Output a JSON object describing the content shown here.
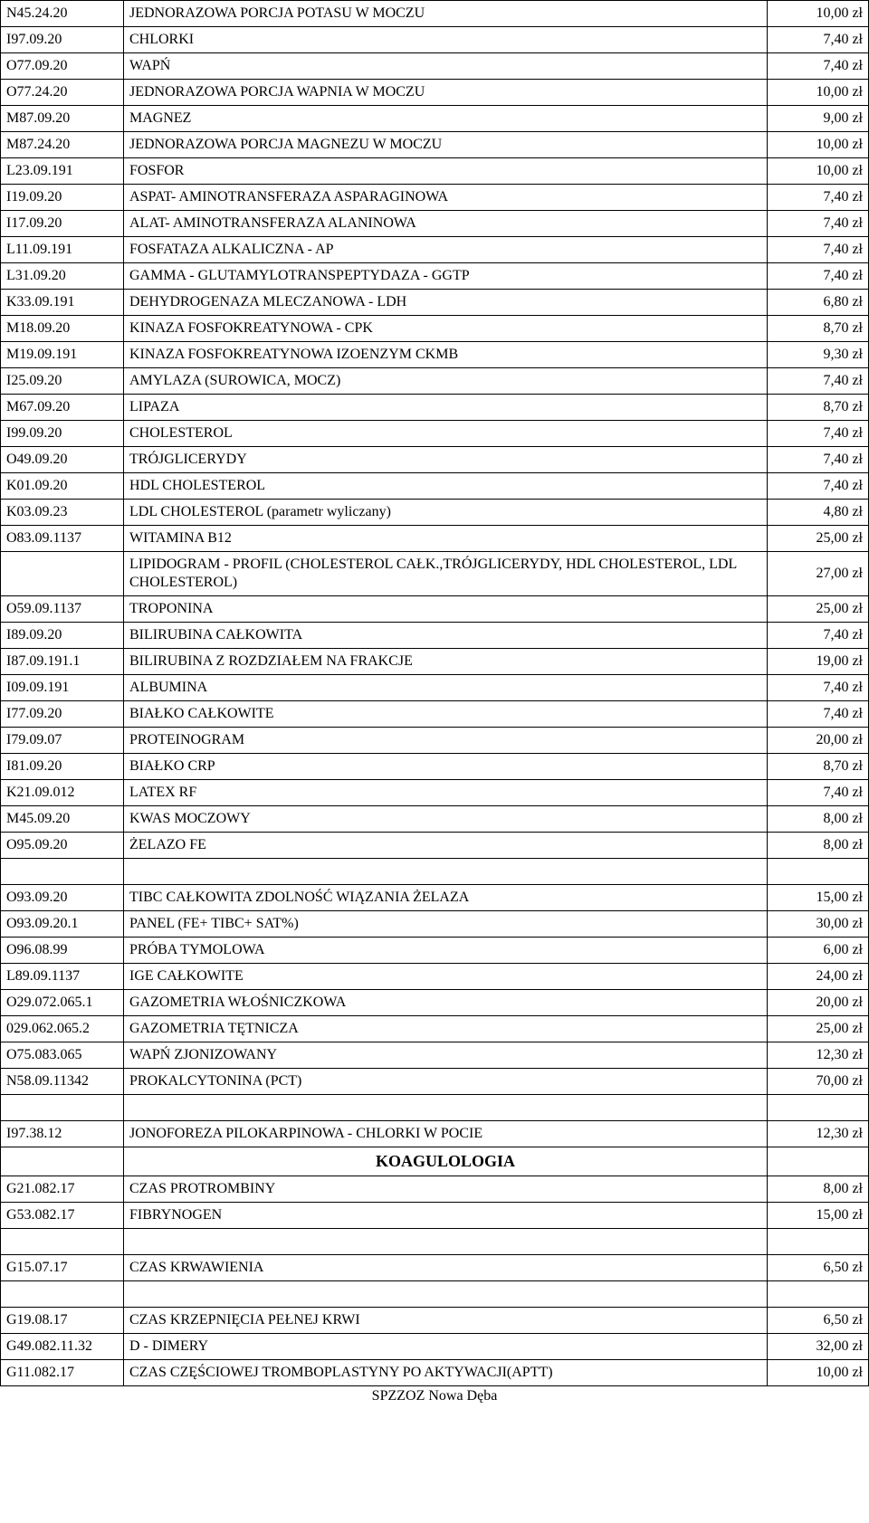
{
  "footer": "SPZZOZ Nowa Dęba",
  "koagulologia_header": "KOAGULOLOGIA",
  "rows": [
    {
      "code": "N45.24.20",
      "name": "JEDNORAZOWA PORCJA POTASU W MOCZU",
      "price": "10,00 zł"
    },
    {
      "code": "I97.09.20",
      "name": "CHLORKI",
      "price": "7,40 zł"
    },
    {
      "code": "O77.09.20",
      "name": "WAPŃ",
      "price": "7,40 zł"
    },
    {
      "code": "O77.24.20",
      "name": "JEDNORAZOWA PORCJA WAPNIA W MOCZU",
      "price": "10,00 zł"
    },
    {
      "code": "M87.09.20",
      "name": "MAGNEZ",
      "price": "9,00 zł"
    },
    {
      "code": "M87.24.20",
      "name": "JEDNORAZOWA PORCJA MAGNEZU W MOCZU",
      "price": "10,00 zł"
    },
    {
      "code": "L23.09.191",
      "name": "FOSFOR",
      "price": "10,00 zł"
    },
    {
      "code": "I19.09.20",
      "name": "ASPAT- AMINOTRANSFERAZA ASPARAGINOWA",
      "price": "7,40 zł"
    },
    {
      "code": "I17.09.20",
      "name": "ALAT- AMINOTRANSFERAZA ALANINOWA",
      "price": "7,40 zł"
    },
    {
      "code": "L11.09.191",
      "name": "FOSFATAZA ALKALICZNA - AP",
      "price": "7,40 zł"
    },
    {
      "code": "L31.09.20",
      "name": "GAMMA - GLUTAMYLOTRANSPEPTYDAZA - GGTP",
      "price": "7,40 zł"
    },
    {
      "code": "K33.09.191",
      "name": "DEHYDROGENAZA MLECZANOWA - LDH",
      "price": "6,80 zł"
    },
    {
      "code": "M18.09.20",
      "name": "KINAZA FOSFOKREATYNOWA - CPK",
      "price": "8,70 zł"
    },
    {
      "code": "M19.09.191",
      "name": "KINAZA FOSFOKREATYNOWA IZOENZYM CKMB",
      "price": "9,30 zł"
    },
    {
      "code": "I25.09.20",
      "name": "AMYLAZA (SUROWICA, MOCZ)",
      "price": "7,40 zł"
    },
    {
      "code": "M67.09.20",
      "name": "LIPAZA",
      "price": "8,70 zł"
    },
    {
      "code": "I99.09.20",
      "name": "CHOLESTEROL",
      "price": "7,40 zł"
    },
    {
      "code": "O49.09.20",
      "name": "TRÓJGLICERYDY",
      "price": "7,40 zł"
    },
    {
      "code": "K01.09.20",
      "name": "HDL CHOLESTEROL",
      "price": "7,40 zł"
    },
    {
      "code": "K03.09.23",
      "name": "LDL CHOLESTEROL (parametr wyliczany)",
      "price": "4,80 zł"
    },
    {
      "code": "O83.09.1137",
      "name": "WITAMINA B12",
      "price": "25,00 zł"
    },
    {
      "code": "",
      "name": "LIPIDOGRAM - PROFIL (CHOLESTEROL CAŁK.,TRÓJGLICERYDY, HDL CHOLESTEROL, LDL CHOLESTEROL)",
      "price": "27,00 zł"
    },
    {
      "code": "O59.09.1137",
      "name": "TROPONINA",
      "price": "25,00 zł"
    },
    {
      "code": "I89.09.20",
      "name": "BILIRUBINA CAŁKOWITA",
      "price": "7,40 zł"
    },
    {
      "code": "I87.09.191.1",
      "name": "BILIRUBINA Z ROZDZIAŁEM NA FRAKCJE",
      "price": "19,00 zł"
    },
    {
      "code": "I09.09.191",
      "name": "ALBUMINA",
      "price": "7,40 zł"
    },
    {
      "code": "I77.09.20",
      "name": "BIAŁKO CAŁKOWITE",
      "price": "7,40 zł"
    },
    {
      "code": "I79.09.07",
      "name": "PROTEINOGRAM",
      "price": "20,00 zł"
    },
    {
      "code": "I81.09.20",
      "name": "BIAŁKO CRP",
      "price": "8,70 zł"
    },
    {
      "code": "K21.09.012",
      "name": "LATEX RF",
      "price": "7,40 zł"
    },
    {
      "code": "M45.09.20",
      "name": "KWAS MOCZOWY",
      "price": "8,00 zł"
    },
    {
      "code": "O95.09.20",
      "name": "ŻELAZO FE",
      "price": "8,00 zł"
    },
    {
      "code": "O93.09.20",
      "name": "TIBC CAŁKOWITA ZDOLNOŚĆ WIĄZANIA ŻELAZA",
      "price": "15,00 zł"
    },
    {
      "code": "O93.09.20.1",
      "name": "PANEL (FE+ TIBC+ SAT%)",
      "price": "30,00 zł"
    },
    {
      "code": "O96.08.99",
      "name": "PRÓBA TYMOLOWA",
      "price": "6,00 zł"
    },
    {
      "code": "L89.09.1137",
      "name": "IGE CAŁKOWITE",
      "price": "24,00 zł"
    },
    {
      "code": "O29.072.065.1",
      "name": "GAZOMETRIA WŁOŚNICZKOWA",
      "price": "20,00 zł"
    },
    {
      "code": "029.062.065.2",
      "name": "GAZOMETRIA TĘTNICZA",
      "price": "25,00 zł"
    },
    {
      "code": "O75.083.065",
      "name": "WAPŃ ZJONIZOWANY",
      "price": "12,30 zł"
    },
    {
      "code": "N58.09.11342",
      "name": "PROKALCYTONINA (PCT)",
      "price": "70,00 zł"
    },
    {
      "code": "I97.38.12",
      "name": "JONOFOREZA PILOKARPINOWA - CHLORKI W POCIE",
      "price": "12,30 zł"
    }
  ],
  "koag_rows": [
    {
      "code": "G21.082.17",
      "name": "CZAS PROTROMBINY",
      "price": "8,00 zł"
    },
    {
      "code": "G53.082.17",
      "name": "FIBRYNOGEN",
      "price": "15,00 zł"
    },
    {
      "code": "G15.07.17",
      "name": "CZAS KRWAWIENIA",
      "price": "6,50 zł"
    },
    {
      "code": "G19.08.17",
      "name": "CZAS KRZEPNIĘCIA PEŁNEJ KRWI",
      "price": "6,50 zł"
    },
    {
      "code": "G49.082.11.32",
      "name": "D - DIMERY",
      "price": "32,00 zł"
    },
    {
      "code": "G11.082.17",
      "name": "CZAS CZĘŚCIOWEJ TROMBOPLASTYNY PO AKTYWACJI(APTT)",
      "price": "10,00 zł"
    }
  ]
}
